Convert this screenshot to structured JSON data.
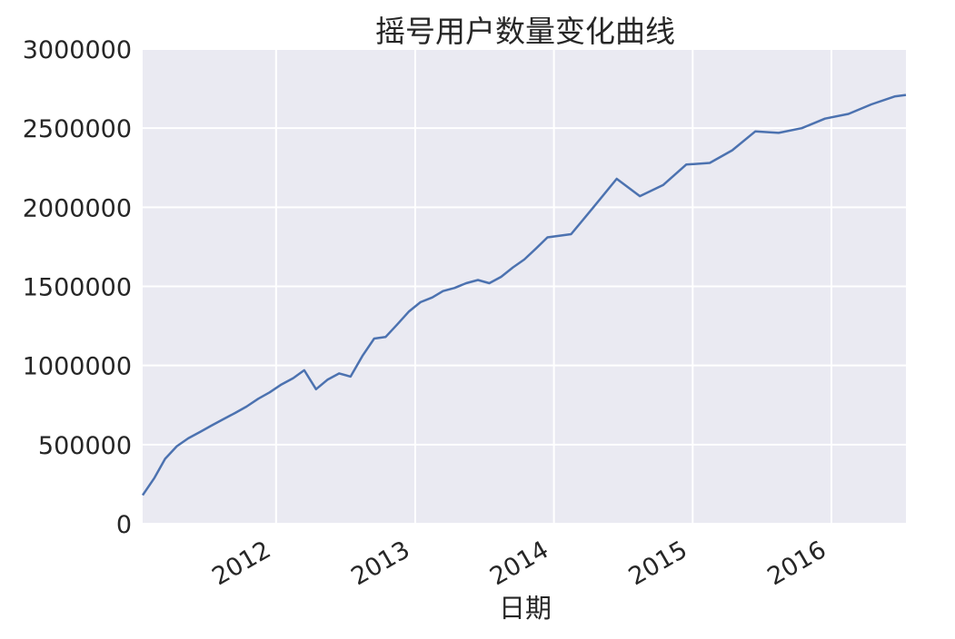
{
  "chart_data": {
    "type": "line",
    "title": "摇号用户数量变化曲线",
    "xlabel": "日期",
    "ylabel": "",
    "ylim": [
      0,
      3000000
    ],
    "xlim": [
      "2011-01-15",
      "2016-07-15"
    ],
    "yticks": [
      0,
      500000,
      1000000,
      1500000,
      2000000,
      2500000,
      3000000
    ],
    "ytick_labels": [
      "0",
      "500000",
      "1000000",
      "1500000",
      "2000000",
      "2500000",
      "3000000"
    ],
    "xticks": [
      "2012-01-01",
      "2013-01-01",
      "2014-01-01",
      "2015-01-01",
      "2016-01-01"
    ],
    "xtick_labels": [
      "2012",
      "2013",
      "2014",
      "2015",
      "2016"
    ],
    "grid": true,
    "background": "#eaeaf2",
    "line_color": "#4c72b0",
    "series": [
      {
        "x": [
          "2011-01-15",
          "2011-02-15",
          "2011-03-15",
          "2011-04-15",
          "2011-05-15",
          "2011-06-15",
          "2011-07-15",
          "2011-08-15",
          "2011-09-15",
          "2011-10-15",
          "2011-11-15",
          "2011-12-15",
          "2012-01-15",
          "2012-02-15",
          "2012-03-15",
          "2012-04-15",
          "2012-05-15",
          "2012-06-15",
          "2012-07-15",
          "2012-08-15",
          "2012-09-15",
          "2012-10-15",
          "2012-11-15",
          "2012-12-15",
          "2013-01-15",
          "2013-02-15",
          "2013-03-15",
          "2013-04-15",
          "2013-05-15",
          "2013-06-15",
          "2013-07-15",
          "2013-08-15",
          "2013-09-15",
          "2013-10-15",
          "2013-11-15",
          "2013-12-15",
          "2014-02-15",
          "2014-04-15",
          "2014-06-15",
          "2014-08-15",
          "2014-10-15",
          "2014-12-15",
          "2015-02-15",
          "2015-04-15",
          "2015-06-15",
          "2015-08-15",
          "2015-10-15",
          "2015-12-15",
          "2016-02-15",
          "2016-04-15",
          "2016-06-15",
          "2016-07-15"
        ],
        "values": [
          180000,
          290000,
          410000,
          490000,
          540000,
          580000,
          620000,
          660000,
          700000,
          740000,
          790000,
          830000,
          880000,
          920000,
          970000,
          850000,
          910000,
          950000,
          930000,
          1060000,
          1170000,
          1180000,
          1260000,
          1340000,
          1400000,
          1430000,
          1470000,
          1490000,
          1520000,
          1540000,
          1520000,
          1560000,
          1620000,
          1670000,
          1740000,
          1810000,
          1830000,
          2000000,
          2180000,
          2070000,
          2140000,
          2270000,
          2280000,
          2360000,
          2480000,
          2470000,
          2500000,
          2560000,
          2590000,
          2650000,
          2700000,
          2710000
        ]
      }
    ]
  }
}
